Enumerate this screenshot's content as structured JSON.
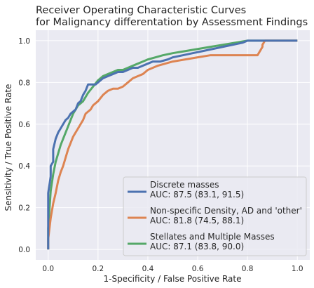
{
  "chart_data": {
    "type": "line",
    "title_line1": "Receiver Operating Characteristic Curves",
    "title_line2": "for Malignancy differentation by Assessment Findings",
    "xlabel": "1-Specificity / False Positive Rate",
    "ylabel": "Sensitivity / True Positive Rate",
    "xlim": [
      -0.05,
      1.05
    ],
    "ylim": [
      -0.05,
      1.05
    ],
    "xticks": [
      "0.0",
      "0.2",
      "0.4",
      "0.6",
      "0.8",
      "1.0"
    ],
    "yticks": [
      "0.0",
      "0.2",
      "0.4",
      "0.6",
      "0.8",
      "1.0"
    ],
    "grid": true,
    "legend_position": "lower-right",
    "series": [
      {
        "legend_line1": "Discrete masses",
        "legend_line2": "AUC: 87.5 (83.1, 91.5)",
        "color": "#4c72b0",
        "x": [
          0.0,
          0.0,
          0.01,
          0.01,
          0.02,
          0.02,
          0.03,
          0.04,
          0.05,
          0.06,
          0.07,
          0.08,
          0.09,
          0.1,
          0.11,
          0.12,
          0.13,
          0.14,
          0.15,
          0.16,
          0.17,
          0.19,
          0.2,
          0.22,
          0.24,
          0.26,
          0.28,
          0.3,
          0.32,
          0.34,
          0.36,
          0.38,
          0.4,
          0.42,
          0.45,
          0.48,
          0.5,
          0.54,
          0.58,
          0.62,
          0.66,
          0.7,
          0.74,
          0.78,
          0.8,
          0.85,
          0.9,
          0.95,
          1.0
        ],
        "y": [
          0.0,
          0.27,
          0.35,
          0.4,
          0.42,
          0.48,
          0.53,
          0.56,
          0.58,
          0.6,
          0.62,
          0.63,
          0.65,
          0.66,
          0.67,
          0.7,
          0.71,
          0.74,
          0.76,
          0.79,
          0.79,
          0.79,
          0.8,
          0.82,
          0.83,
          0.84,
          0.85,
          0.85,
          0.86,
          0.87,
          0.87,
          0.88,
          0.89,
          0.9,
          0.9,
          0.91,
          0.92,
          0.93,
          0.94,
          0.95,
          0.96,
          0.97,
          0.98,
          0.99,
          1.0,
          1.0,
          1.0,
          1.0,
          1.0
        ]
      },
      {
        "legend_line1": "Non-specific Density, AD and 'other'",
        "legend_line2": "AUC: 81.8 (74.5, 88.1)",
        "color": "#dd8452",
        "x": [
          0.0,
          0.0,
          0.01,
          0.02,
          0.03,
          0.04,
          0.05,
          0.06,
          0.07,
          0.08,
          0.09,
          0.1,
          0.11,
          0.12,
          0.13,
          0.14,
          0.15,
          0.17,
          0.18,
          0.2,
          0.22,
          0.24,
          0.26,
          0.28,
          0.3,
          0.32,
          0.34,
          0.36,
          0.38,
          0.4,
          0.42,
          0.44,
          0.47,
          0.5,
          0.55,
          0.6,
          0.65,
          0.7,
          0.75,
          0.8,
          0.84,
          0.85,
          0.86,
          0.86,
          0.87,
          1.0
        ],
        "y": [
          0.0,
          0.05,
          0.15,
          0.22,
          0.27,
          0.33,
          0.37,
          0.4,
          0.44,
          0.48,
          0.51,
          0.54,
          0.56,
          0.58,
          0.6,
          0.62,
          0.65,
          0.67,
          0.69,
          0.71,
          0.74,
          0.76,
          0.77,
          0.77,
          0.78,
          0.8,
          0.82,
          0.83,
          0.84,
          0.86,
          0.87,
          0.88,
          0.89,
          0.9,
          0.91,
          0.92,
          0.93,
          0.93,
          0.93,
          0.93,
          0.93,
          0.95,
          0.97,
          0.98,
          1.0,
          1.0
        ]
      },
      {
        "legend_line1": "Stellates and Multiple Masses",
        "legend_line2": "AUC: 87.1 (83.8, 90.0)",
        "color": "#55a868",
        "x": [
          0.0,
          0.0,
          0.01,
          0.02,
          0.03,
          0.04,
          0.05,
          0.06,
          0.07,
          0.08,
          0.09,
          0.1,
          0.11,
          0.12,
          0.13,
          0.14,
          0.15,
          0.16,
          0.18,
          0.2,
          0.22,
          0.24,
          0.26,
          0.28,
          0.3,
          0.32,
          0.34,
          0.36,
          0.38,
          0.4,
          0.43,
          0.46,
          0.5,
          0.55,
          0.6,
          0.65,
          0.7,
          0.75,
          0.8,
          0.85,
          0.9,
          1.0
        ],
        "y": [
          0.0,
          0.1,
          0.28,
          0.36,
          0.42,
          0.46,
          0.5,
          0.53,
          0.56,
          0.59,
          0.62,
          0.65,
          0.67,
          0.69,
          0.7,
          0.71,
          0.73,
          0.75,
          0.78,
          0.81,
          0.83,
          0.84,
          0.85,
          0.86,
          0.86,
          0.87,
          0.88,
          0.89,
          0.9,
          0.91,
          0.92,
          0.93,
          0.94,
          0.95,
          0.96,
          0.97,
          0.98,
          0.99,
          1.0,
          1.0,
          1.0,
          1.0
        ]
      }
    ]
  }
}
